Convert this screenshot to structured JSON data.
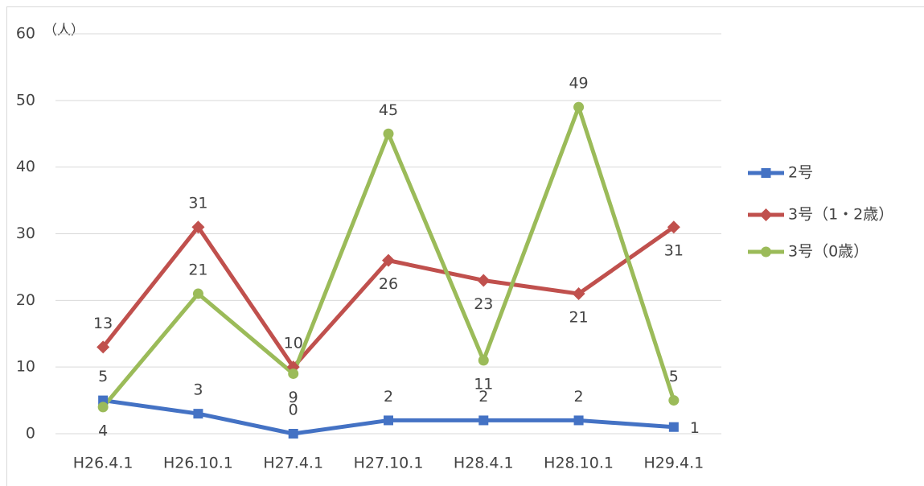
{
  "chart_data": {
    "type": "line",
    "y_axis_label": "（人）",
    "categories": [
      "H26.4.1",
      "H26.10.1",
      "H27.4.1",
      "H27.10.1",
      "H28.4.1",
      "H28.10.1",
      "H29.4.1"
    ],
    "series": [
      {
        "name": "2号",
        "color": "#4472c4",
        "marker": "square",
        "values": [
          5,
          3,
          0,
          2,
          2,
          2,
          1
        ]
      },
      {
        "name": "3号（1・2歳）",
        "color": "#c0504d",
        "marker": "diamond",
        "values": [
          13,
          31,
          10,
          26,
          23,
          21,
          31
        ]
      },
      {
        "name": "3号（0歳）",
        "color": "#9bbb59",
        "marker": "circle",
        "values": [
          4,
          21,
          9,
          45,
          11,
          49,
          5
        ]
      }
    ],
    "ylim": [
      0,
      60
    ],
    "yticks": [
      0,
      10,
      20,
      30,
      40,
      50,
      60
    ],
    "grid": true,
    "legend": "right"
  }
}
